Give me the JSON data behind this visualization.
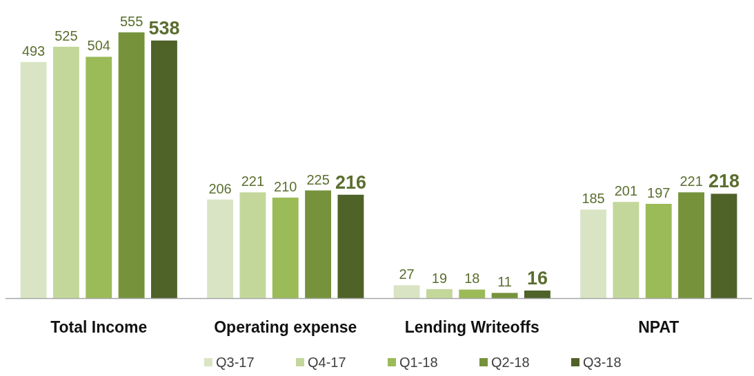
{
  "chart_data": {
    "type": "bar",
    "categories": [
      "Total Income",
      "Operating expense",
      "Lending Writeoffs",
      "NPAT"
    ],
    "series": [
      {
        "name": "Q3-17",
        "color": "#d9e4c4",
        "values": [
          493,
          206,
          27,
          185
        ]
      },
      {
        "name": "Q4-17",
        "color": "#c4d79b",
        "values": [
          525,
          221,
          19,
          201
        ]
      },
      {
        "name": "Q1-18",
        "color": "#9bbb59",
        "values": [
          504,
          210,
          18,
          197
        ]
      },
      {
        "name": "Q2-18",
        "color": "#76933c",
        "values": [
          555,
          225,
          11,
          221
        ]
      },
      {
        "name": "Q3-18",
        "color": "#4f6228",
        "values": [
          538,
          216,
          16,
          218
        ]
      }
    ],
    "data_labels": true,
    "legend": "bottom"
  }
}
